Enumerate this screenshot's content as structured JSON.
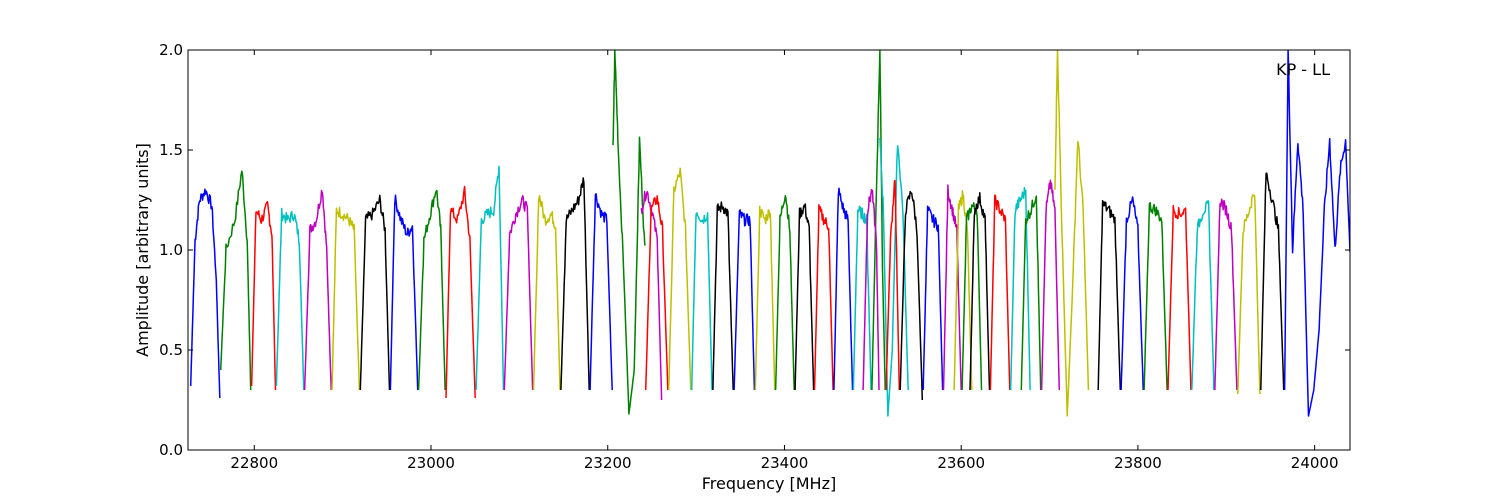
{
  "chart_data": {
    "type": "line",
    "title": "",
    "annotation": "KP - LL",
    "xlabel": "Frequency [MHz]",
    "ylabel": "Amplitude [arbitrary units]",
    "xlim": [
      22725,
      24040
    ],
    "ylim": [
      0.0,
      2.0
    ],
    "x_ticks": [
      22800,
      23000,
      23200,
      23400,
      23600,
      23800,
      24000
    ],
    "y_ticks": [
      0.0,
      0.5,
      1.0,
      1.5,
      2.0
    ],
    "x_tick_labels": [
      "22800",
      "23000",
      "23200",
      "23400",
      "23600",
      "23800",
      "24000"
    ],
    "y_tick_labels": [
      "0.0",
      "0.5",
      "1.0",
      "1.5",
      "2.0"
    ],
    "grid": false,
    "legend": "none",
    "colors": {
      "blue": "#0000ff",
      "green": "#008000",
      "red": "#ff0000",
      "cyan": "#00bfbf",
      "magenta": "#bf00bf",
      "yellow": "#bfbf00",
      "black": "#000000"
    },
    "series": [
      {
        "color": "blue",
        "x": [
          22728,
          22733,
          22738,
          22745,
          22752,
          22757,
          22761
        ],
        "y": [
          0.32,
          1.05,
          1.25,
          1.3,
          1.22,
          0.85,
          0.26
        ]
      },
      {
        "color": "green",
        "x": [
          22762,
          22768,
          22778,
          22786,
          22792,
          22796
        ],
        "y": [
          0.4,
          1.0,
          1.15,
          1.4,
          1.05,
          0.3
        ]
      },
      {
        "color": "red",
        "x": [
          22797,
          22802,
          22808,
          22815,
          22820,
          22824
        ],
        "y": [
          0.32,
          1.2,
          1.15,
          1.22,
          1.08,
          0.3
        ]
      },
      {
        "color": "cyan",
        "x": [
          22825,
          22831,
          22838,
          22845,
          22851,
          22856
        ],
        "y": [
          0.32,
          1.18,
          1.15,
          1.18,
          1.05,
          0.3
        ]
      },
      {
        "color": "magenta",
        "x": [
          22857,
          22863,
          22870,
          22877,
          22882,
          22887
        ],
        "y": [
          0.3,
          1.1,
          1.15,
          1.31,
          1.0,
          0.3
        ]
      },
      {
        "color": "yellow",
        "x": [
          22888,
          22893,
          22900,
          22907,
          22913,
          22919
        ],
        "y": [
          0.3,
          1.2,
          1.18,
          1.15,
          1.1,
          0.3
        ]
      },
      {
        "color": "black",
        "x": [
          22920,
          22926,
          22934,
          22942,
          22948,
          22953
        ],
        "y": [
          0.3,
          1.15,
          1.18,
          1.25,
          1.1,
          0.3
        ]
      },
      {
        "color": "blue",
        "x": [
          22954,
          22959,
          22966,
          22973,
          22979,
          22985
        ],
        "y": [
          0.3,
          1.26,
          1.15,
          1.08,
          1.12,
          0.3
        ]
      },
      {
        "color": "green",
        "x": [
          22986,
          22992,
          22999,
          23006,
          23011,
          23016
        ],
        "y": [
          0.3,
          1.05,
          1.18,
          1.31,
          1.1,
          0.3
        ]
      },
      {
        "color": "red",
        "x": [
          23017,
          23022,
          23030,
          23038,
          23044,
          23050
        ],
        "y": [
          0.26,
          1.2,
          1.15,
          1.29,
          1.05,
          0.26
        ]
      },
      {
        "color": "cyan",
        "x": [
          23051,
          23057,
          23064,
          23071,
          23077,
          23082
        ],
        "y": [
          0.3,
          1.15,
          1.18,
          1.2,
          1.42,
          0.3
        ]
      },
      {
        "color": "magenta",
        "x": [
          23083,
          23089,
          23096,
          23103,
          23109,
          23115
        ],
        "y": [
          0.3,
          1.08,
          1.18,
          1.25,
          1.2,
          0.3
        ]
      },
      {
        "color": "yellow",
        "x": [
          23116,
          23122,
          23129,
          23136,
          23141,
          23146
        ],
        "y": [
          0.3,
          1.28,
          1.15,
          1.18,
          1.12,
          0.3
        ]
      },
      {
        "color": "black",
        "x": [
          23147,
          23153,
          23160,
          23167,
          23173,
          23179
        ],
        "y": [
          0.3,
          1.15,
          1.2,
          1.25,
          1.36,
          0.3
        ]
      },
      {
        "color": "blue",
        "x": [
          23180,
          23186,
          23193,
          23199,
          23205
        ],
        "y": [
          0.3,
          1.28,
          1.18,
          1.15,
          0.3
        ]
      },
      {
        "color": "green",
        "x": [
          23206,
          23208,
          23212,
          23218,
          23224,
          23230,
          23236,
          23242
        ],
        "y": [
          1.5,
          2.0,
          1.5,
          0.9,
          0.18,
          0.4,
          1.55,
          1.0
        ]
      },
      {
        "color": "magenta",
        "x": [
          23238,
          23244,
          23250,
          23256,
          23261
        ],
        "y": [
          1.2,
          1.3,
          1.2,
          1.05,
          0.25
        ]
      },
      {
        "color": "red",
        "x": [
          23243,
          23249,
          23256,
          23262,
          23268
        ],
        "y": [
          0.3,
          1.2,
          1.26,
          1.1,
          0.3
        ]
      },
      {
        "color": "yellow",
        "x": [
          23269,
          23275,
          23282,
          23288,
          23294
        ],
        "y": [
          0.3,
          1.3,
          1.39,
          1.1,
          0.3
        ]
      },
      {
        "color": "cyan",
        "x": [
          23295,
          23300,
          23307,
          23313,
          23318
        ],
        "y": [
          0.3,
          1.2,
          1.15,
          1.18,
          0.3
        ]
      },
      {
        "color": "black",
        "x": [
          23319,
          23324,
          23330,
          23336,
          23342
        ],
        "y": [
          0.3,
          1.2,
          1.22,
          1.18,
          0.3
        ]
      },
      {
        "color": "blue",
        "x": [
          23343,
          23349,
          23355,
          23361,
          23366
        ],
        "y": [
          0.3,
          1.18,
          1.15,
          1.15,
          0.3
        ]
      },
      {
        "color": "yellow",
        "x": [
          23367,
          23372,
          23378,
          23384,
          23389
        ],
        "y": [
          0.3,
          1.2,
          1.15,
          1.2,
          0.3
        ]
      },
      {
        "color": "green",
        "x": [
          23390,
          23395,
          23401,
          23406,
          23411
        ],
        "y": [
          0.3,
          1.15,
          1.29,
          1.1,
          0.3
        ]
      },
      {
        "color": "black",
        "x": [
          23412,
          23417,
          23423,
          23428,
          23433
        ],
        "y": [
          0.3,
          1.18,
          1.22,
          1.1,
          0.3
        ]
      },
      {
        "color": "red",
        "x": [
          23434,
          23439,
          23445,
          23450,
          23455
        ],
        "y": [
          0.3,
          1.2,
          1.15,
          1.12,
          0.3
        ]
      },
      {
        "color": "blue",
        "x": [
          23456,
          23461,
          23467,
          23472,
          23477
        ],
        "y": [
          0.3,
          1.3,
          1.2,
          1.15,
          0.3
        ]
      },
      {
        "color": "cyan",
        "x": [
          23478,
          23483,
          23488,
          23493,
          23498
        ],
        "y": [
          0.3,
          1.2,
          1.18,
          1.15,
          0.3
        ]
      },
      {
        "color": "green",
        "x": [
          23499,
          23503,
          23508,
          23511,
          23514
        ],
        "y": [
          0.3,
          1.1,
          2.0,
          0.9,
          0.3
        ]
      },
      {
        "color": "magenta",
        "x": [
          23489,
          23494,
          23499,
          23504,
          23507
        ],
        "y": [
          0.3,
          1.2,
          1.3,
          1.05,
          0.3
        ]
      },
      {
        "color": "cyan",
        "x": [
          23508,
          23512,
          23517,
          23522,
          23528,
          23534,
          23540
        ],
        "y": [
          1.55,
          1.2,
          0.17,
          0.5,
          1.55,
          1.2,
          0.3
        ]
      },
      {
        "color": "red",
        "x": [
          23515,
          23520,
          23525,
          23530
        ],
        "y": [
          0.3,
          1.05,
          1.37,
          0.3
        ]
      },
      {
        "color": "black",
        "x": [
          23531,
          23537,
          23544,
          23550,
          23556
        ],
        "y": [
          0.3,
          1.2,
          1.3,
          1.1,
          0.25
        ]
      },
      {
        "color": "blue",
        "x": [
          23557,
          23562,
          23568,
          23574,
          23579
        ],
        "y": [
          0.3,
          1.2,
          1.15,
          1.12,
          0.3
        ]
      },
      {
        "color": "magenta",
        "x": [
          23580,
          23585,
          23590,
          23595,
          23600
        ],
        "y": [
          0.3,
          1.3,
          1.2,
          1.1,
          0.3
        ]
      },
      {
        "color": "yellow",
        "x": [
          23592,
          23597,
          23602,
          23607,
          23612
        ],
        "y": [
          0.3,
          1.2,
          1.28,
          1.1,
          0.3
        ]
      },
      {
        "color": "green",
        "x": [
          23601,
          23606,
          23612,
          23618,
          23623
        ],
        "y": [
          0.3,
          1.15,
          1.22,
          1.2,
          0.3
        ]
      },
      {
        "color": "black",
        "x": [
          23610,
          23615,
          23621,
          23627,
          23632
        ],
        "y": [
          0.3,
          1.2,
          1.26,
          1.15,
          0.3
        ]
      },
      {
        "color": "red",
        "x": [
          23633,
          23638,
          23644,
          23650,
          23655
        ],
        "y": [
          0.3,
          1.25,
          1.2,
          1.15,
          0.3
        ]
      },
      {
        "color": "cyan",
        "x": [
          23656,
          23661,
          23667,
          23673,
          23678
        ],
        "y": [
          0.3,
          1.2,
          1.25,
          1.3,
          0.3
        ]
      },
      {
        "color": "green",
        "x": [
          23668,
          23673,
          23679,
          23685,
          23690
        ],
        "y": [
          0.3,
          1.15,
          1.2,
          1.28,
          0.3
        ]
      },
      {
        "color": "magenta",
        "x": [
          23691,
          23696,
          23701,
          23706,
          23711
        ],
        "y": [
          0.3,
          1.2,
          1.34,
          1.2,
          0.3
        ]
      },
      {
        "color": "yellow",
        "x": [
          23706,
          23709,
          23714,
          23720,
          23726,
          23732,
          23738,
          23744
        ],
        "y": [
          1.3,
          2.0,
          1.1,
          0.17,
          0.8,
          1.56,
          1.2,
          0.3
        ]
      },
      {
        "color": "black",
        "x": [
          23755,
          23760,
          23767,
          23774,
          23780
        ],
        "y": [
          0.3,
          1.23,
          1.2,
          1.15,
          0.3
        ]
      },
      {
        "color": "blue",
        "x": [
          23781,
          23787,
          23794,
          23800,
          23806
        ],
        "y": [
          0.3,
          1.15,
          1.25,
          1.1,
          0.3
        ]
      },
      {
        "color": "green",
        "x": [
          23807,
          23813,
          23820,
          23827,
          23833
        ],
        "y": [
          0.3,
          1.22,
          1.2,
          1.15,
          0.3
        ]
      },
      {
        "color": "red",
        "x": [
          23834,
          23840,
          23847,
          23854,
          23860
        ],
        "y": [
          0.3,
          1.2,
          1.18,
          1.2,
          0.3
        ]
      },
      {
        "color": "cyan",
        "x": [
          23861,
          23867,
          23874,
          23880,
          23886
        ],
        "y": [
          0.3,
          1.1,
          1.2,
          1.22,
          0.3
        ]
      },
      {
        "color": "magenta",
        "x": [
          23887,
          23893,
          23900,
          23906,
          23912
        ],
        "y": [
          0.3,
          1.25,
          1.2,
          1.1,
          0.3
        ]
      },
      {
        "color": "yellow",
        "x": [
          23913,
          23919,
          23926,
          23932,
          23938
        ],
        "y": [
          0.28,
          1.1,
          1.2,
          1.3,
          0.28
        ]
      },
      {
        "color": "black",
        "x": [
          23939,
          23945,
          23952,
          23959,
          23965
        ],
        "y": [
          0.3,
          1.39,
          1.25,
          1.1,
          0.3
        ]
      },
      {
        "color": "blue",
        "x": [
          23966,
          23970,
          23975,
          23981,
          23987,
          23993,
          23999,
          24005,
          24011,
          24017,
          24023,
          24029,
          24035,
          24040
        ],
        "y": [
          0.3,
          2.0,
          1.0,
          1.55,
          1.2,
          0.17,
          0.3,
          0.6,
          1.2,
          1.55,
          1.0,
          1.4,
          1.55,
          1.0
        ]
      }
    ]
  }
}
